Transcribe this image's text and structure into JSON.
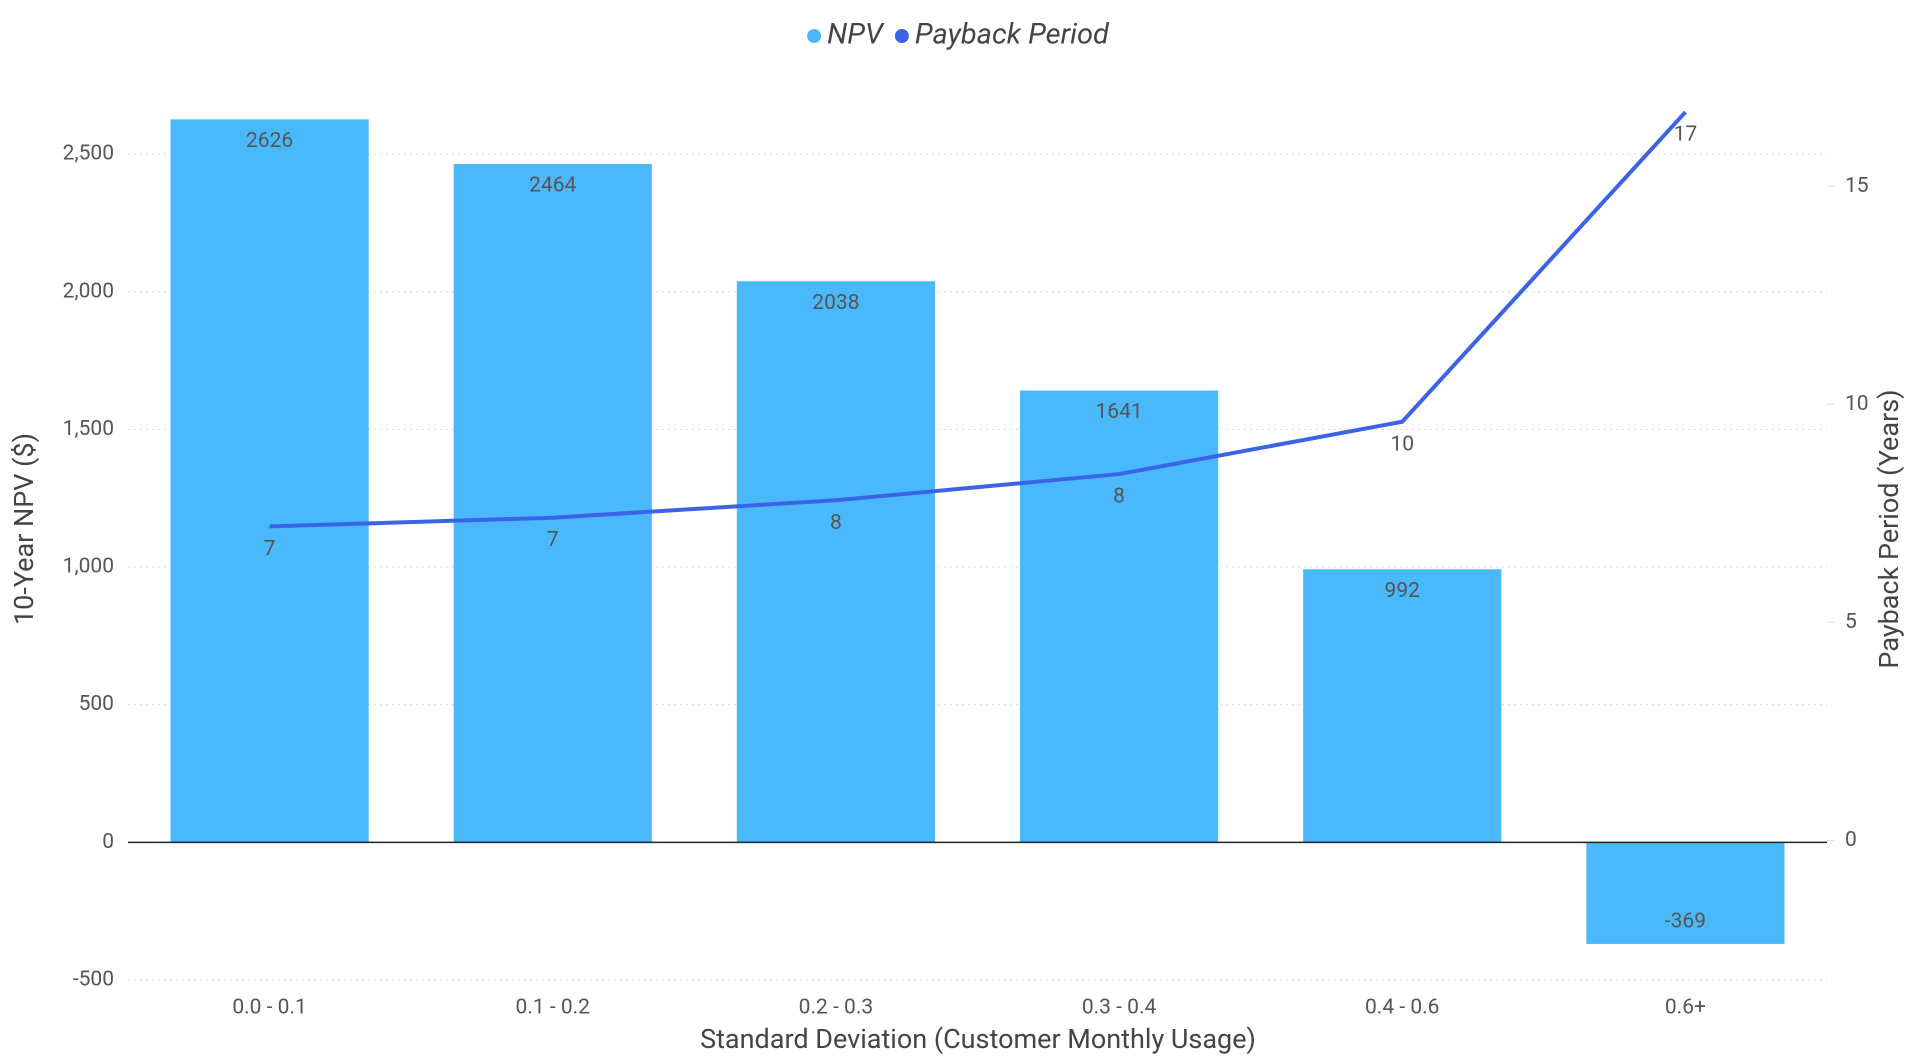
{
  "chart_data": {
    "type": "bar",
    "x_label": "Standard Deviation (Customer Monthly Usage)",
    "y_label": "10-Year NPV ($)",
    "y2_label": "Payback Period (Years)",
    "categories": [
      "0.0 - 0.1",
      "0.1 - 0.2",
      "0.2 - 0.3",
      "0.3 - 0.4",
      "0.4 - 0.6",
      "0.6+"
    ],
    "series": [
      {
        "name": "NPV",
        "type": "bar",
        "color": "#4ab9fb",
        "values": [
          2626,
          2464,
          2038,
          1641,
          992,
          -369
        ]
      },
      {
        "name": "Payback Period",
        "type": "line",
        "axis": "y2",
        "color": "#3b63e8",
        "values": [
          7.2,
          7.4,
          7.8,
          8.4,
          9.6,
          16.7
        ],
        "value_labels": [
          "7",
          "7",
          "8",
          "8",
          "10",
          "17"
        ]
      }
    ],
    "ylim": [
      -500,
      2700
    ],
    "yticks": [
      -500,
      0,
      500,
      {
        "value": 1000,
        "label": "1,000"
      },
      {
        "value": 1500,
        "label": "1,500"
      },
      {
        "value": 2000,
        "label": "2,000"
      },
      {
        "value": 2500,
        "label": "2,500"
      }
    ],
    "y2lim": [
      -3.2,
      17
    ],
    "y2ticks": [
      0,
      5,
      10,
      15
    ],
    "grid": true,
    "legend": "top"
  }
}
